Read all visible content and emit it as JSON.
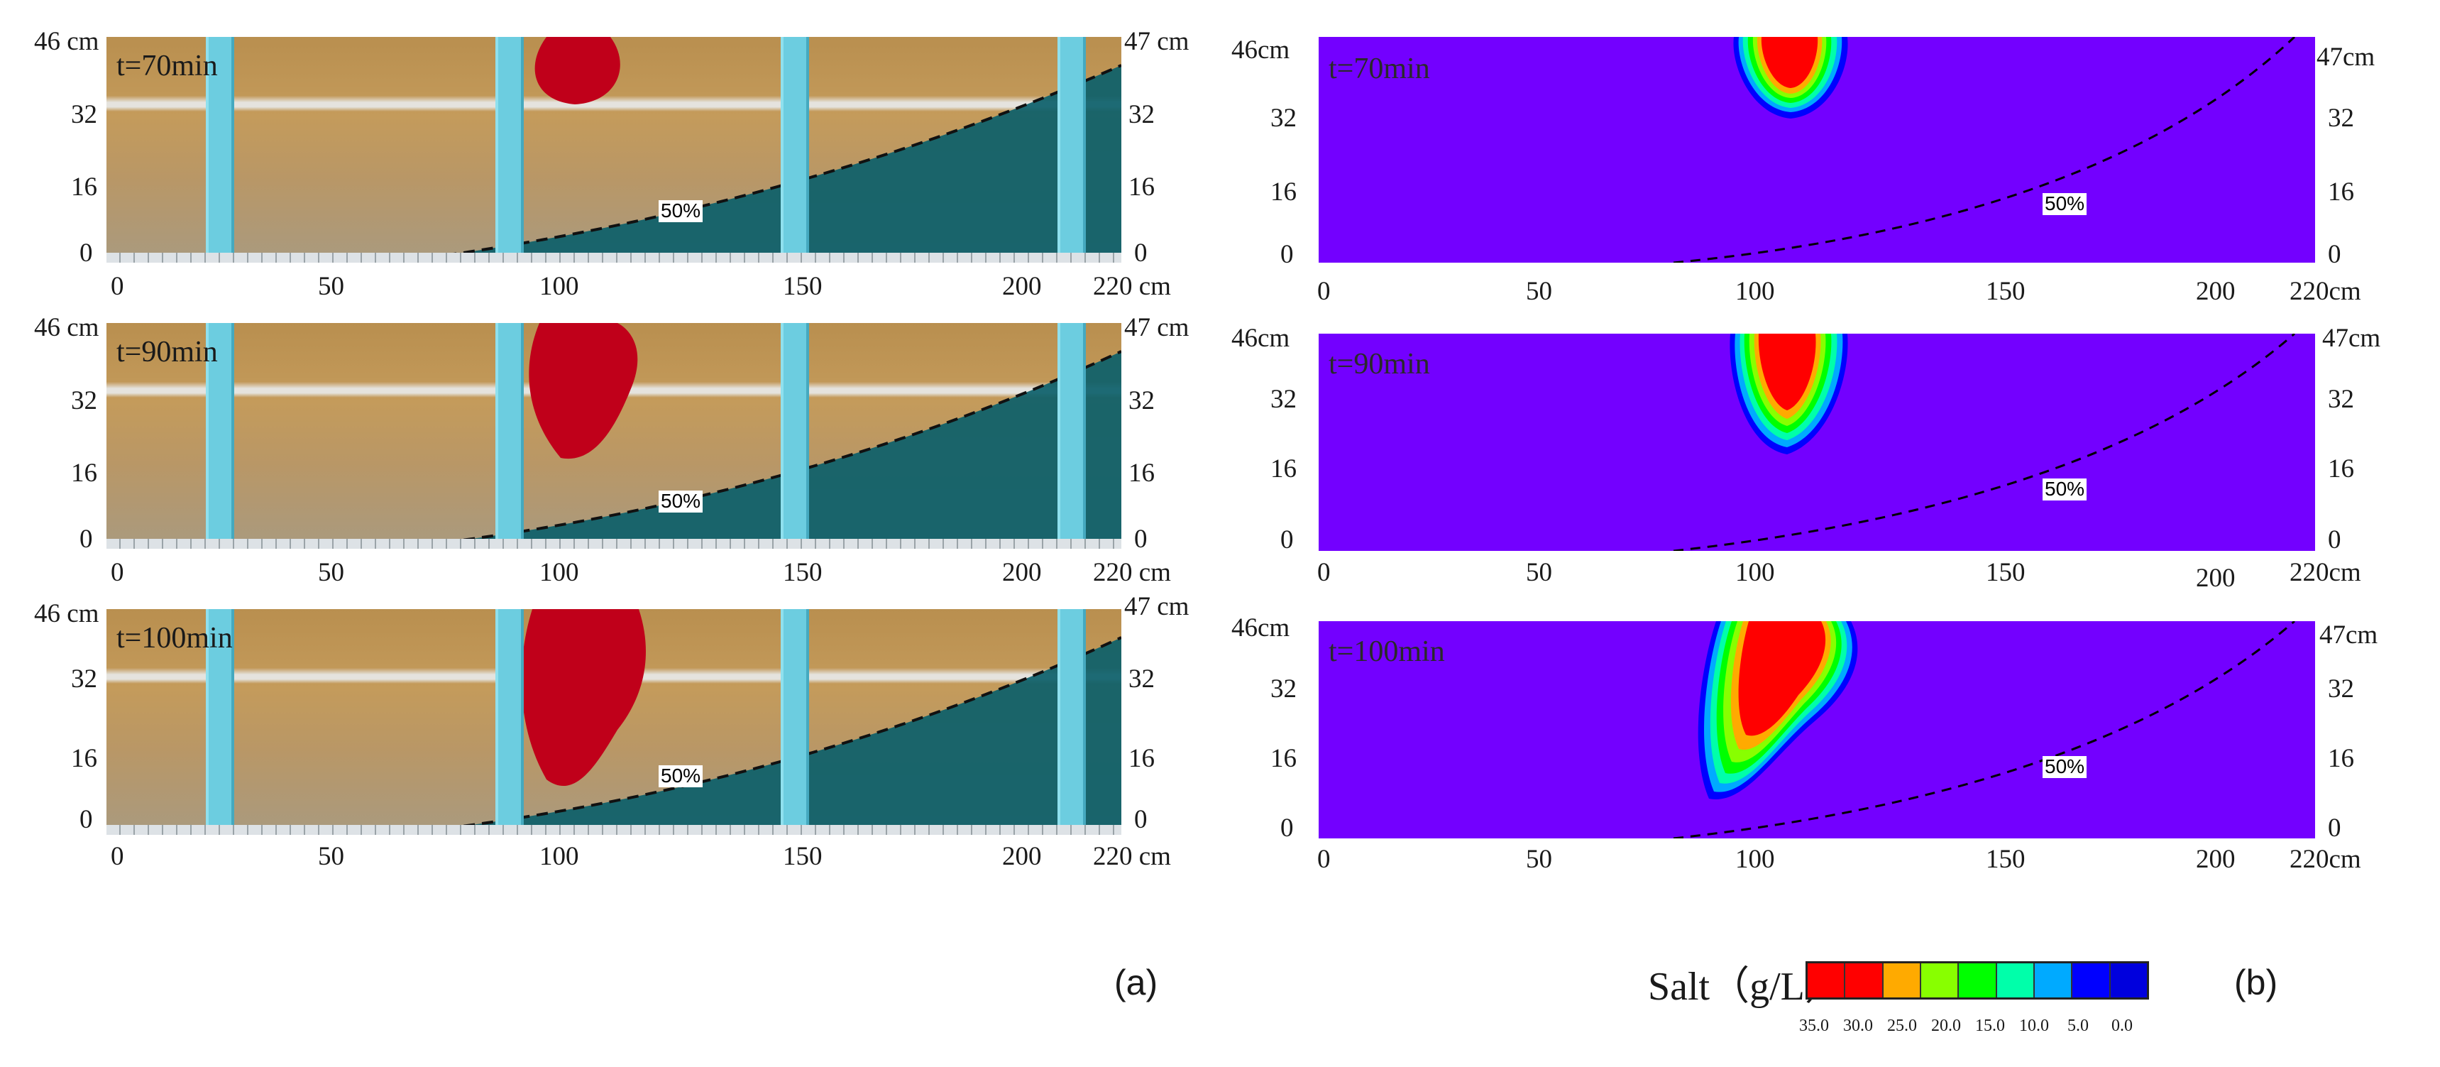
{
  "panel_a": {
    "label": "(a)",
    "frames": [
      {
        "time": "t=70min",
        "left_top": "46 cm",
        "right_top": "47 cm",
        "percent": "50%"
      },
      {
        "time": "t=90min",
        "left_top": "46 cm",
        "right_top": "47 cm",
        "percent": "50%"
      },
      {
        "time": "t=100min",
        "left_top": "46 cm",
        "right_top": "47 cm",
        "percent": "50%"
      }
    ],
    "y_ticks": [
      "32",
      "16",
      "0"
    ],
    "right_ticks": [
      "32",
      "16",
      "0"
    ],
    "x_ticks": [
      "0",
      "50",
      "100",
      "150",
      "200",
      "220 cm"
    ]
  },
  "panel_b": {
    "label": "(b)",
    "frames": [
      {
        "time": "t=70min",
        "left_top": "46cm",
        "right_top": "47cm",
        "percent": "50%"
      },
      {
        "time": "t=90min",
        "left_top": "46cm",
        "right_top": "47cm",
        "percent": "50%"
      },
      {
        "time": "t=100min",
        "left_top": "46cm",
        "right_top": "47cm",
        "percent": "50%"
      }
    ],
    "y_ticks": [
      "32",
      "16",
      "0"
    ],
    "right_ticks": [
      "32",
      "16",
      "0"
    ],
    "x_ticks": [
      "0",
      "50",
      "100",
      "150",
      "200",
      "220cm"
    ]
  },
  "legend": {
    "title": "Salt（g/L）",
    "colors": [
      "#ff0000",
      "#ff0000",
      "#ffaa00",
      "#88ff00",
      "#00ff00",
      "#00ffaa",
      "#00aaff",
      "#0000ff",
      "#0000dd"
    ],
    "ticks": [
      "35.0",
      "30.0",
      "25.0",
      "20.0",
      "15.0",
      "10.0",
      "5.0",
      "0.0"
    ]
  },
  "colors": {
    "sand": "#c49b5b",
    "saltwater": "#0c5f6a",
    "dye": "#c0001a",
    "sim_background": "#7300ff"
  }
}
